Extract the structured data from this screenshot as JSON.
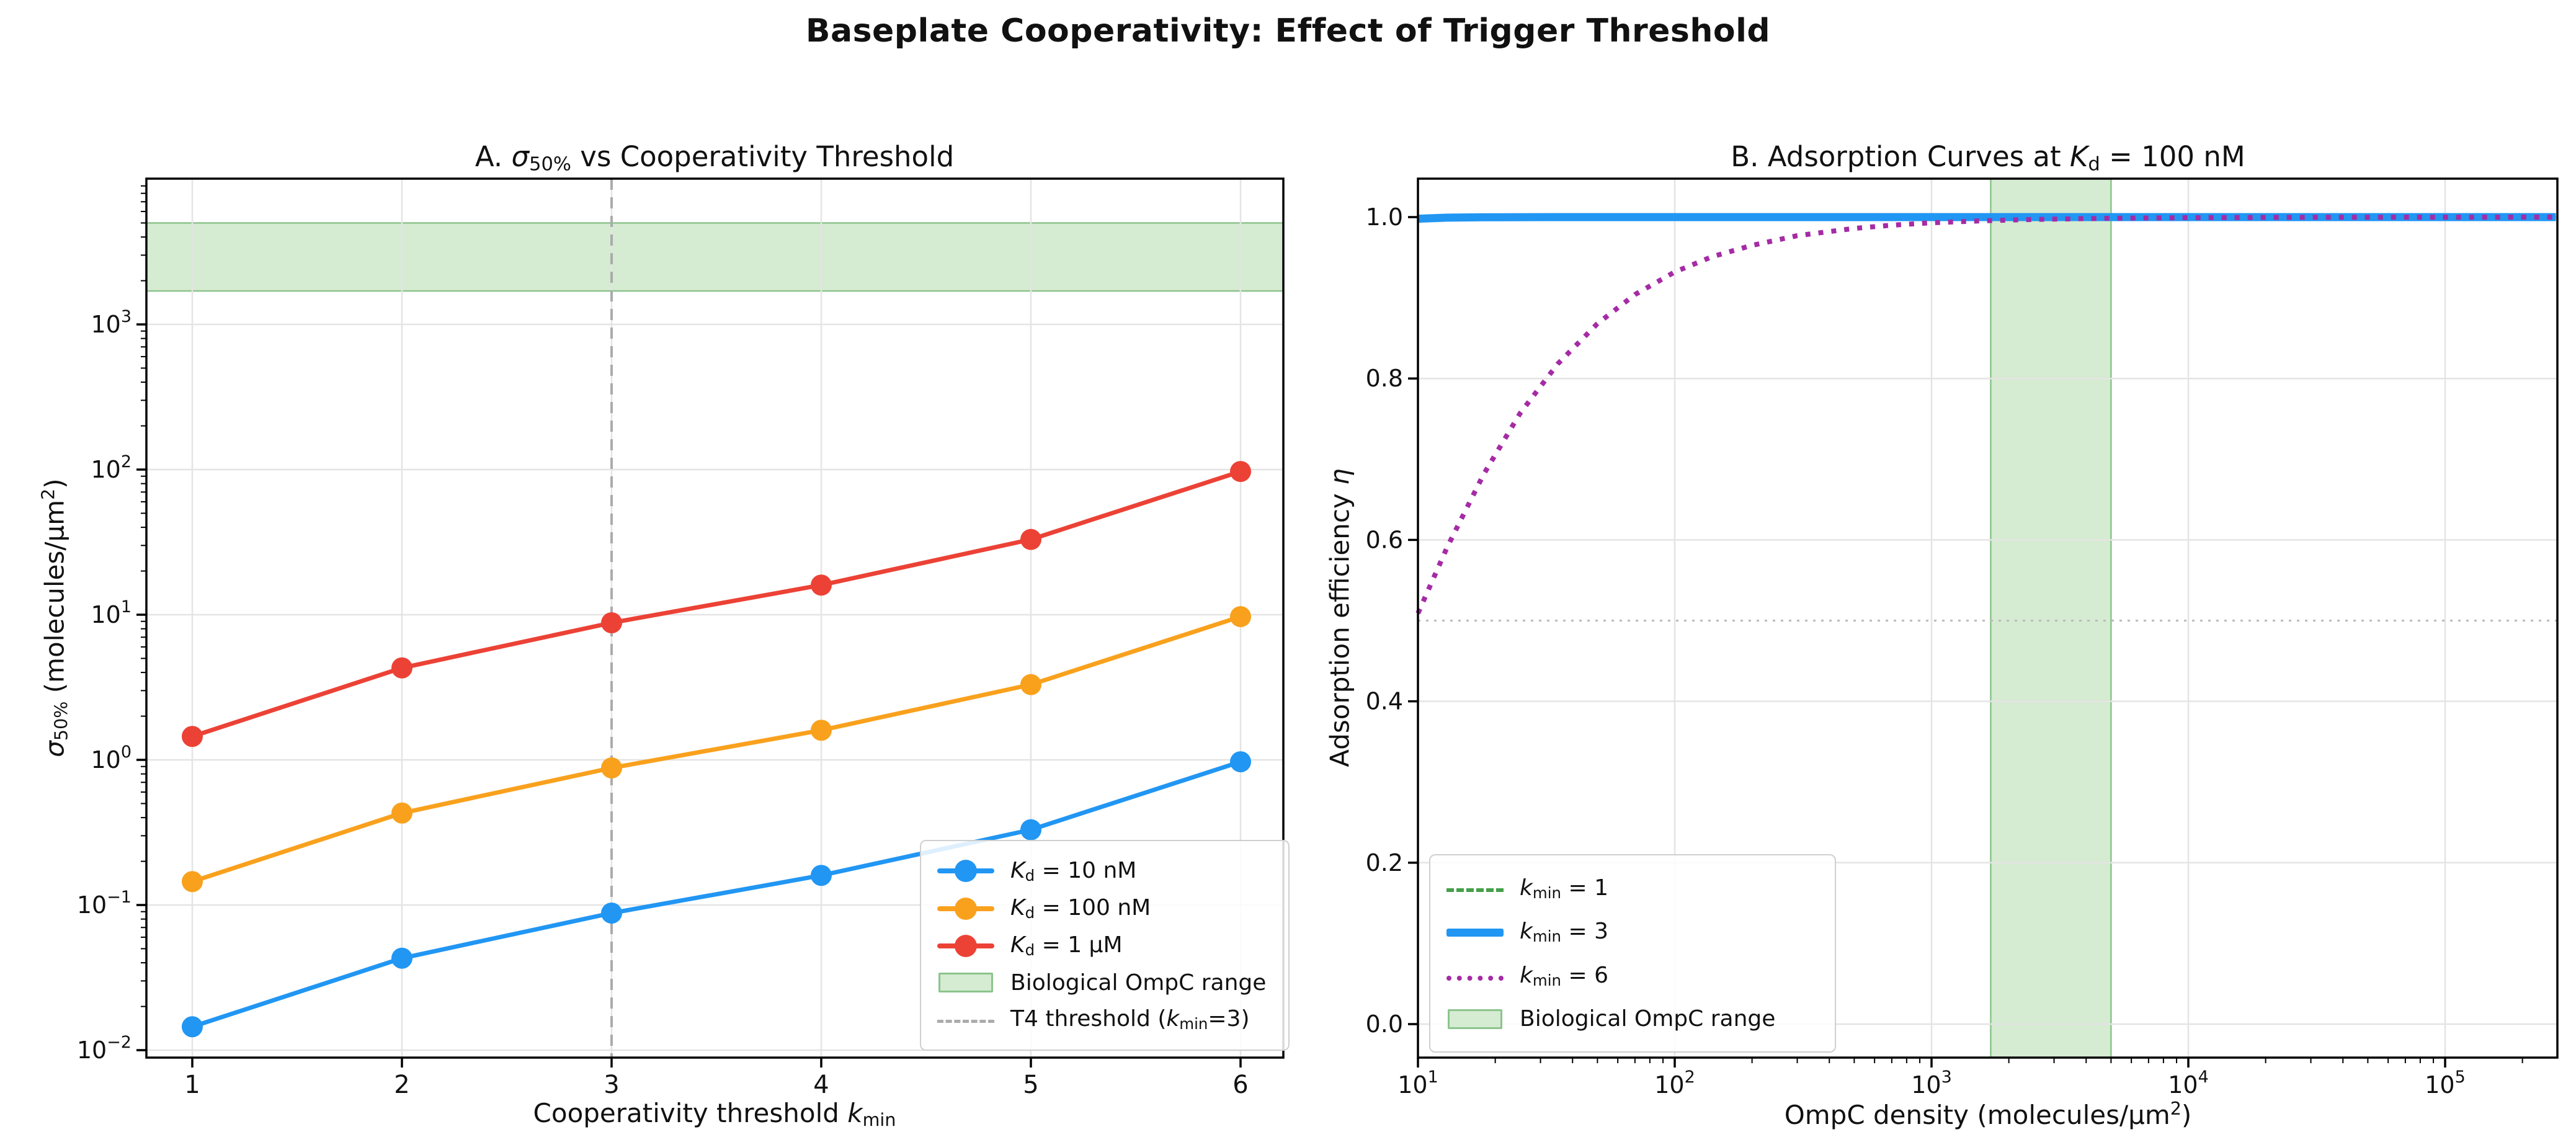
{
  "figure": {
    "title": "Baseplate Cooperativity: Effect of Trigger Threshold"
  },
  "colors": {
    "kd10": "#2196f3",
    "kd100": "#f9a11d",
    "kd1um": "#ec4236",
    "kmin1": "#45a049",
    "kmin3": "#2196f3",
    "kmin6": "#a52ba5",
    "band_fill": "#d5ebd2",
    "band_edge": "#8cc48c",
    "grid": "#e4e4e4",
    "vline_dashed": "#ababab",
    "hline_dotted": "#bbbbbb",
    "spine": "#000000",
    "text": "#111111"
  },
  "panelA": {
    "title": {
      "pre": "A. ",
      "it": "σ",
      "sb": "50%",
      "rest": " vs Cooperativity Threshold"
    },
    "xlabel": {
      "pre": "Cooperativity threshold ",
      "it": "k",
      "sb": "min"
    },
    "ylabel": {
      "it": "σ",
      "sb": "50%",
      "rest": " (molecules/μm",
      "sp": "2",
      "end": ")"
    },
    "legend": {
      "items": [
        {
          "it": "K",
          "sb": "d",
          "rest": " = 10 nM"
        },
        {
          "it": "K",
          "sb": "d",
          "rest": " = 100 nM"
        },
        {
          "it": "K",
          "sb": "d",
          "rest": " = 1 μM"
        },
        {
          "rest": "Biological OmpC range"
        },
        {
          "pre": "T4 threshold (",
          "it": "k",
          "sb": "min",
          "rest": "=3)"
        }
      ]
    }
  },
  "panelB": {
    "title": {
      "pre": "B. Adsorption Curves at ",
      "it": "K",
      "sb": "d",
      "rest": " = 100 nM"
    },
    "xlabel": {
      "pre": "OmpC density (molecules/μm",
      "sp": "2",
      "end": ")"
    },
    "ylabel": {
      "pre": "Adsorption efficiency ",
      "it": "η"
    },
    "legend": {
      "items": [
        {
          "it": "k",
          "sb": "min",
          "rest": " = 1"
        },
        {
          "it": "k",
          "sb": "min",
          "rest": " = 3"
        },
        {
          "it": "k",
          "sb": "min",
          "rest": " = 6"
        },
        {
          "rest": "Biological OmpC range"
        }
      ]
    }
  },
  "chart_data": [
    {
      "id": "A",
      "type": "line",
      "title": "A. σ50% vs Cooperativity Threshold",
      "xlabel": "Cooperativity threshold k_min",
      "ylabel": "σ50% (molecules/μm²)",
      "xscale": "linear",
      "yscale": "log",
      "xlim": [
        0.78,
        6.22
      ],
      "ylim": [
        0.009,
        10000
      ],
      "grid": true,
      "legend_position": "lower right",
      "x": [
        1,
        2,
        3,
        4,
        5,
        6
      ],
      "series": [
        {
          "name": "Kd = 10 nM",
          "color": "#2196f3",
          "marker": "circle",
          "linestyle": "solid",
          "values": [
            0.0145,
            0.043,
            0.088,
            0.16,
            0.33,
            0.97
          ]
        },
        {
          "name": "Kd = 100 nM",
          "color": "#f9a11d",
          "marker": "circle",
          "linestyle": "solid",
          "values": [
            0.145,
            0.43,
            0.88,
            1.6,
            3.3,
            9.7
          ]
        },
        {
          "name": "Kd = 1 μM",
          "color": "#ec4236",
          "marker": "circle",
          "linestyle": "solid",
          "values": [
            1.45,
            4.3,
            8.8,
            16,
            33,
            97
          ]
        }
      ],
      "hband": {
        "label": "Biological OmpC range",
        "range": [
          1700,
          5000
        ],
        "fill": "#d5ebd2",
        "edge": "#8cc48c"
      },
      "vline": {
        "label": "T4 threshold (kmin=3)",
        "x": 3,
        "color": "#ababab",
        "style": "dashed"
      },
      "xticks": [
        {
          "v": 1,
          "t": "1"
        },
        {
          "v": 2,
          "t": "2"
        },
        {
          "v": 3,
          "t": "3"
        },
        {
          "v": 4,
          "t": "4"
        },
        {
          "v": 5,
          "t": "5"
        },
        {
          "v": 6,
          "t": "6"
        }
      ],
      "yticks": [
        {
          "v": 1000,
          "b": "10",
          "e": "3"
        },
        {
          "v": 100,
          "b": "10",
          "e": "2"
        },
        {
          "v": 10,
          "b": "10",
          "e": "1"
        },
        {
          "v": 1,
          "b": "10",
          "e": "0"
        },
        {
          "v": 0.1,
          "b": "10",
          "e": "−1"
        },
        {
          "v": 0.01,
          "b": "10",
          "e": "−2"
        }
      ]
    },
    {
      "id": "B",
      "type": "line",
      "title": "B. Adsorption Curves at Kd = 100 nM",
      "xlabel": "OmpC density (molecules/μm²)",
      "ylabel": "Adsorption efficiency η",
      "xscale": "log",
      "yscale": "linear",
      "xlim": [
        10,
        273000
      ],
      "ylim": [
        -0.047,
        1.047
      ],
      "grid": true,
      "legend_position": "lower left",
      "x": [
        10,
        13,
        18,
        25,
        35,
        50,
        70,
        100,
        140,
        200,
        300,
        500,
        700,
        1000,
        1600,
        2500,
        5000,
        10000,
        30000,
        100000,
        270000
      ],
      "series": [
        {
          "name": "kmin = 1",
          "color": "#45a049",
          "marker": "none",
          "linestyle": "dashed",
          "linewidth": 5,
          "values": [
            1,
            1,
            1,
            1,
            1,
            1,
            1,
            1,
            1,
            1,
            1,
            1,
            1,
            1,
            1,
            1,
            1,
            1,
            1,
            1,
            1
          ]
        },
        {
          "name": "kmin = 3",
          "color": "#2196f3",
          "marker": "none",
          "linestyle": "solid",
          "linewidth": 13,
          "values": [
            0.998,
            0.9993,
            0.9998,
            0.9999,
            1,
            1,
            1,
            1,
            1,
            1,
            1,
            1,
            1,
            1,
            1,
            1,
            1,
            1,
            1,
            1,
            1
          ]
        },
        {
          "name": "kmin = 6",
          "color": "#a52ba5",
          "marker": "none",
          "linestyle": "dotted",
          "linewidth": 8,
          "values": [
            0.509,
            0.591,
            0.681,
            0.757,
            0.818,
            0.868,
            0.904,
            0.932,
            0.951,
            0.965,
            0.977,
            0.986,
            0.99,
            0.993,
            0.9955,
            0.9971,
            0.9986,
            0.9993,
            0.9998,
            0.9999,
            1.0
          ]
        }
      ],
      "vband": {
        "label": "Biological OmpC range",
        "range": [
          1700,
          5000
        ],
        "fill": "#d5ebd2",
        "edge": "#8cc48c"
      },
      "hline": {
        "y": 0.5,
        "color": "#bbbbbb",
        "style": "dotted"
      },
      "xticks": [
        {
          "v": 10,
          "b": "10",
          "e": "1"
        },
        {
          "v": 100,
          "b": "10",
          "e": "2"
        },
        {
          "v": 1000,
          "b": "10",
          "e": "3"
        },
        {
          "v": 10000,
          "b": "10",
          "e": "4"
        },
        {
          "v": 100000,
          "b": "10",
          "e": "5"
        }
      ],
      "yticks": [
        {
          "v": 0.0,
          "t": "0.0"
        },
        {
          "v": 0.2,
          "t": "0.2"
        },
        {
          "v": 0.4,
          "t": "0.4"
        },
        {
          "v": 0.6,
          "t": "0.6"
        },
        {
          "v": 0.8,
          "t": "0.8"
        },
        {
          "v": 1.0,
          "t": "1.0"
        }
      ]
    }
  ]
}
